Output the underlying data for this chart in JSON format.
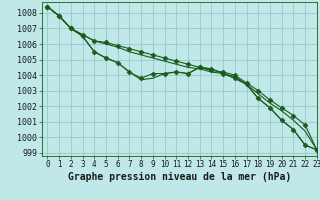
{
  "title": "Graphe pression niveau de la mer (hPa)",
  "bg_color": "#c0e8e8",
  "grid_color": "#98c8c8",
  "line_color": "#1a5c1a",
  "xlim": [
    -0.5,
    23
  ],
  "ylim": [
    998.8,
    1008.7
  ],
  "xticks": [
    0,
    1,
    2,
    3,
    4,
    5,
    6,
    7,
    8,
    9,
    10,
    11,
    12,
    13,
    14,
    15,
    16,
    17,
    18,
    19,
    20,
    21,
    22,
    23
  ],
  "yticks": [
    999,
    1000,
    1001,
    1002,
    1003,
    1004,
    1005,
    1006,
    1007,
    1008
  ],
  "series": [
    [
      1008.4,
      1007.8,
      1007.0,
      1006.5,
      1005.5,
      1005.1,
      1004.8,
      1004.2,
      1003.8,
      1004.1,
      1004.1,
      1004.2,
      1004.1,
      1004.5,
      1004.4,
      1004.1,
      1003.8,
      1003.4,
      1002.5,
      1001.9,
      1001.1,
      1000.5,
      999.5,
      999.2
    ],
    [
      1008.4,
      1007.8,
      1007.0,
      1006.5,
      1005.5,
      1005.1,
      1004.8,
      1004.2,
      1003.7,
      1003.8,
      1004.1,
      1004.2,
      1004.1,
      1004.5,
      1004.4,
      1004.1,
      1003.8,
      1003.4,
      1002.5,
      1001.9,
      1001.1,
      1000.5,
      999.5,
      999.2
    ],
    [
      1008.4,
      1007.8,
      1007.0,
      1006.6,
      1006.2,
      1006.1,
      1005.9,
      1005.7,
      1005.5,
      1005.3,
      1005.1,
      1004.9,
      1004.7,
      1004.5,
      1004.3,
      1004.2,
      1004.0,
      1003.5,
      1003.0,
      1002.4,
      1001.9,
      1001.4,
      1000.8,
      999.2
    ],
    [
      1008.4,
      1007.8,
      1007.0,
      1006.6,
      1006.2,
      1006.0,
      1005.8,
      1005.5,
      1005.3,
      1005.1,
      1004.9,
      1004.7,
      1004.5,
      1004.4,
      1004.2,
      1004.1,
      1003.9,
      1003.4,
      1002.8,
      1002.2,
      1001.7,
      1001.1,
      1000.4,
      999.2
    ]
  ],
  "marker_indices": [
    0,
    2
  ],
  "marker": "D",
  "marker_size": 2.5,
  "linewidth": 0.8,
  "title_fontsize": 7,
  "tick_fontsize": 6,
  "tick_color": "#1a5c1a",
  "label_color": "#1a1a1a"
}
